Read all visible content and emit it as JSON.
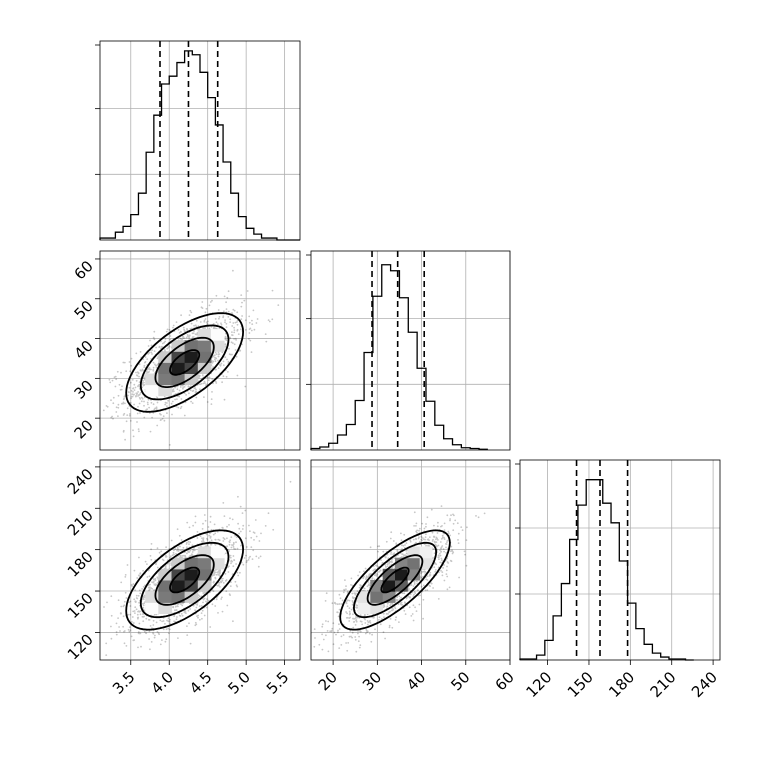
{
  "chart_data": [
    {
      "type": "histogram",
      "panel": "diag-0",
      "xlim": [
        3.1,
        5.7
      ],
      "bins": [
        3.1,
        3.2,
        3.3,
        3.4,
        3.5,
        3.6,
        3.7,
        3.8,
        3.9,
        4.0,
        4.1,
        4.2,
        4.3,
        4.4,
        4.5,
        4.6,
        4.7,
        4.8,
        4.9,
        5.0,
        5.1,
        5.2,
        5.3,
        5.4,
        5.5,
        5.6,
        5.7
      ],
      "counts": [
        1,
        1,
        4,
        7,
        13,
        24,
        45,
        64,
        80,
        84,
        91,
        97,
        95,
        86,
        73,
        59,
        40,
        24,
        12,
        6,
        3,
        1,
        1,
        0,
        0,
        0
      ],
      "ymax": 100,
      "quantiles": [
        3.88,
        4.25,
        4.63
      ],
      "grid": true
    },
    {
      "type": "histogram",
      "panel": "diag-1",
      "xlim": [
        15,
        60
      ],
      "xticks": [
        20,
        30,
        40,
        50,
        60
      ],
      "bins": [
        15,
        17,
        19,
        21,
        23,
        25,
        27,
        29,
        31,
        33,
        35,
        37,
        39,
        41,
        43,
        45,
        47,
        49,
        51,
        53,
        55
      ],
      "counts": [
        2,
        4,
        9,
        20,
        34,
        66,
        130,
        205,
        247,
        239,
        203,
        157,
        109,
        65,
        33,
        15,
        7,
        3,
        2,
        1
      ],
      "ymax": 260,
      "quantiles": [
        28.8,
        34.6,
        40.6
      ],
      "grid": true
    },
    {
      "type": "histogram",
      "panel": "diag-2",
      "xlim": [
        100,
        245
      ],
      "xticks": [
        120,
        150,
        180,
        210,
        240
      ],
      "xtick_labels": [
        "120",
        "150",
        "180",
        "210",
        "240"
      ],
      "bins": [
        100,
        106,
        112,
        118,
        124,
        130,
        136,
        142,
        148,
        154,
        160,
        166,
        172,
        178,
        184,
        190,
        196,
        202,
        208,
        214,
        220,
        226
      ],
      "counts": [
        1,
        1,
        5,
        20,
        45,
        78,
        123,
        158,
        184,
        184,
        160,
        140,
        101,
        58,
        32,
        16,
        7,
        3,
        1,
        1,
        0
      ],
      "ymax": 200,
      "quantiles": [
        141,
        158,
        178
      ],
      "grid": true
    },
    {
      "type": "scatter",
      "panel": "joint-1-0",
      "xlim": [
        3.1,
        5.7
      ],
      "ylim": [
        12,
        62
      ],
      "yticks": [
        20,
        30,
        40,
        50,
        60
      ],
      "ytick_labels": [
        "20",
        "30",
        "40",
        "50",
        "60"
      ],
      "density_peak": [
        4.2,
        34
      ],
      "contour_levels": 4,
      "grid": true
    },
    {
      "type": "scatter",
      "panel": "joint-2-0",
      "xlim": [
        3.1,
        5.7
      ],
      "ylim": [
        100,
        245
      ],
      "xticks": [
        3.5,
        4.0,
        4.5,
        5.0,
        5.5
      ],
      "xtick_labels": [
        "3.5",
        "4.0",
        "4.5",
        "5.0",
        "5.5"
      ],
      "yticks": [
        120,
        150,
        180,
        210,
        240
      ],
      "ytick_labels": [
        "120",
        "150",
        "180",
        "210",
        "240"
      ],
      "density_peak": [
        4.2,
        158
      ],
      "contour_levels": 4,
      "grid": true
    },
    {
      "type": "scatter",
      "panel": "joint-2-1",
      "xlim": [
        15,
        60
      ],
      "ylim": [
        100,
        245
      ],
      "xticks": [
        20,
        30,
        40,
        50,
        60
      ],
      "xtick_labels": [
        "20",
        "30",
        "40",
        "50",
        "60"
      ],
      "density_peak": [
        34,
        158
      ],
      "contour_levels": 4,
      "grid": true
    }
  ]
}
